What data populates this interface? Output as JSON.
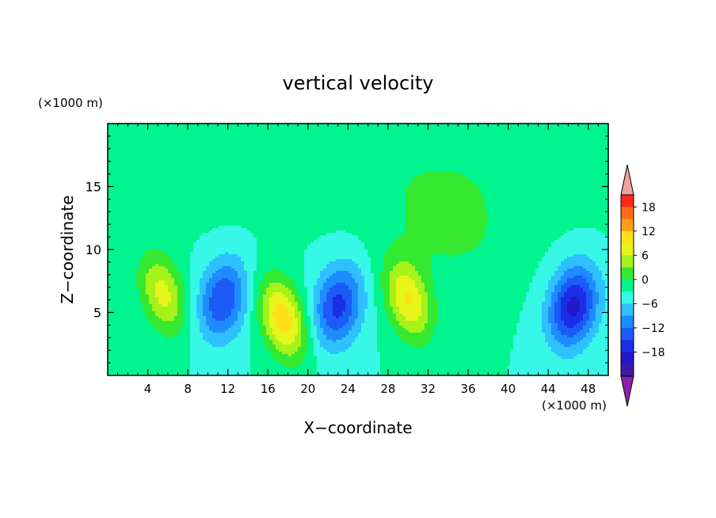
{
  "chart_data": {
    "type": "heatmap",
    "title": "vertical velocity",
    "xlabel": "X−coordinate",
    "ylabel": "Z−coordinate",
    "x_unit": "(×1000 m)",
    "y_unit": "(×1000 m)",
    "xlim": [
      0,
      50
    ],
    "ylim": [
      0,
      20
    ],
    "x_ticks": [
      4,
      8,
      12,
      16,
      20,
      24,
      28,
      32,
      36,
      40,
      44,
      48
    ],
    "y_ticks": [
      5,
      10,
      15
    ],
    "colorbar": {
      "ticks": [
        18,
        12,
        6,
        0,
        -6,
        -12,
        -18
      ],
      "levels": [
        -21,
        -18,
        -15,
        -12,
        -9,
        -6,
        -3,
        0,
        3,
        6,
        9,
        12,
        15,
        18,
        21
      ],
      "colors": [
        "#8b22ad",
        "#3a1aa6",
        "#2417c8",
        "#1a2ee6",
        "#1a5cf5",
        "#1e8cff",
        "#2fc0ff",
        "#37f7e6",
        "#00f58f",
        "#35e830",
        "#a6f21a",
        "#e6f51a",
        "#ffe01a",
        "#ff9e1a",
        "#ff6a1a",
        "#ff2a1a",
        "#f5a0a0"
      ]
    },
    "features": [
      {
        "kind": "updraft",
        "x_center": 5.5,
        "z_center": 6.5,
        "peak": 10
      },
      {
        "kind": "downdraft",
        "x_center": 11.5,
        "z_center": 6.0,
        "peak": -12
      },
      {
        "kind": "updraft",
        "x_center": 17.5,
        "z_center": 4.5,
        "peak": 14
      },
      {
        "kind": "downdraft",
        "x_center": 23.0,
        "z_center": 5.5,
        "peak": -13
      },
      {
        "kind": "updraft",
        "x_center": 30.0,
        "z_center": 6.0,
        "peak": 12
      },
      {
        "kind": "updraft",
        "x_center": 34.0,
        "z_center": 12.0,
        "peak": 4
      },
      {
        "kind": "downdraft",
        "x_center": 46.5,
        "z_center": 5.5,
        "peak": -16
      }
    ]
  }
}
